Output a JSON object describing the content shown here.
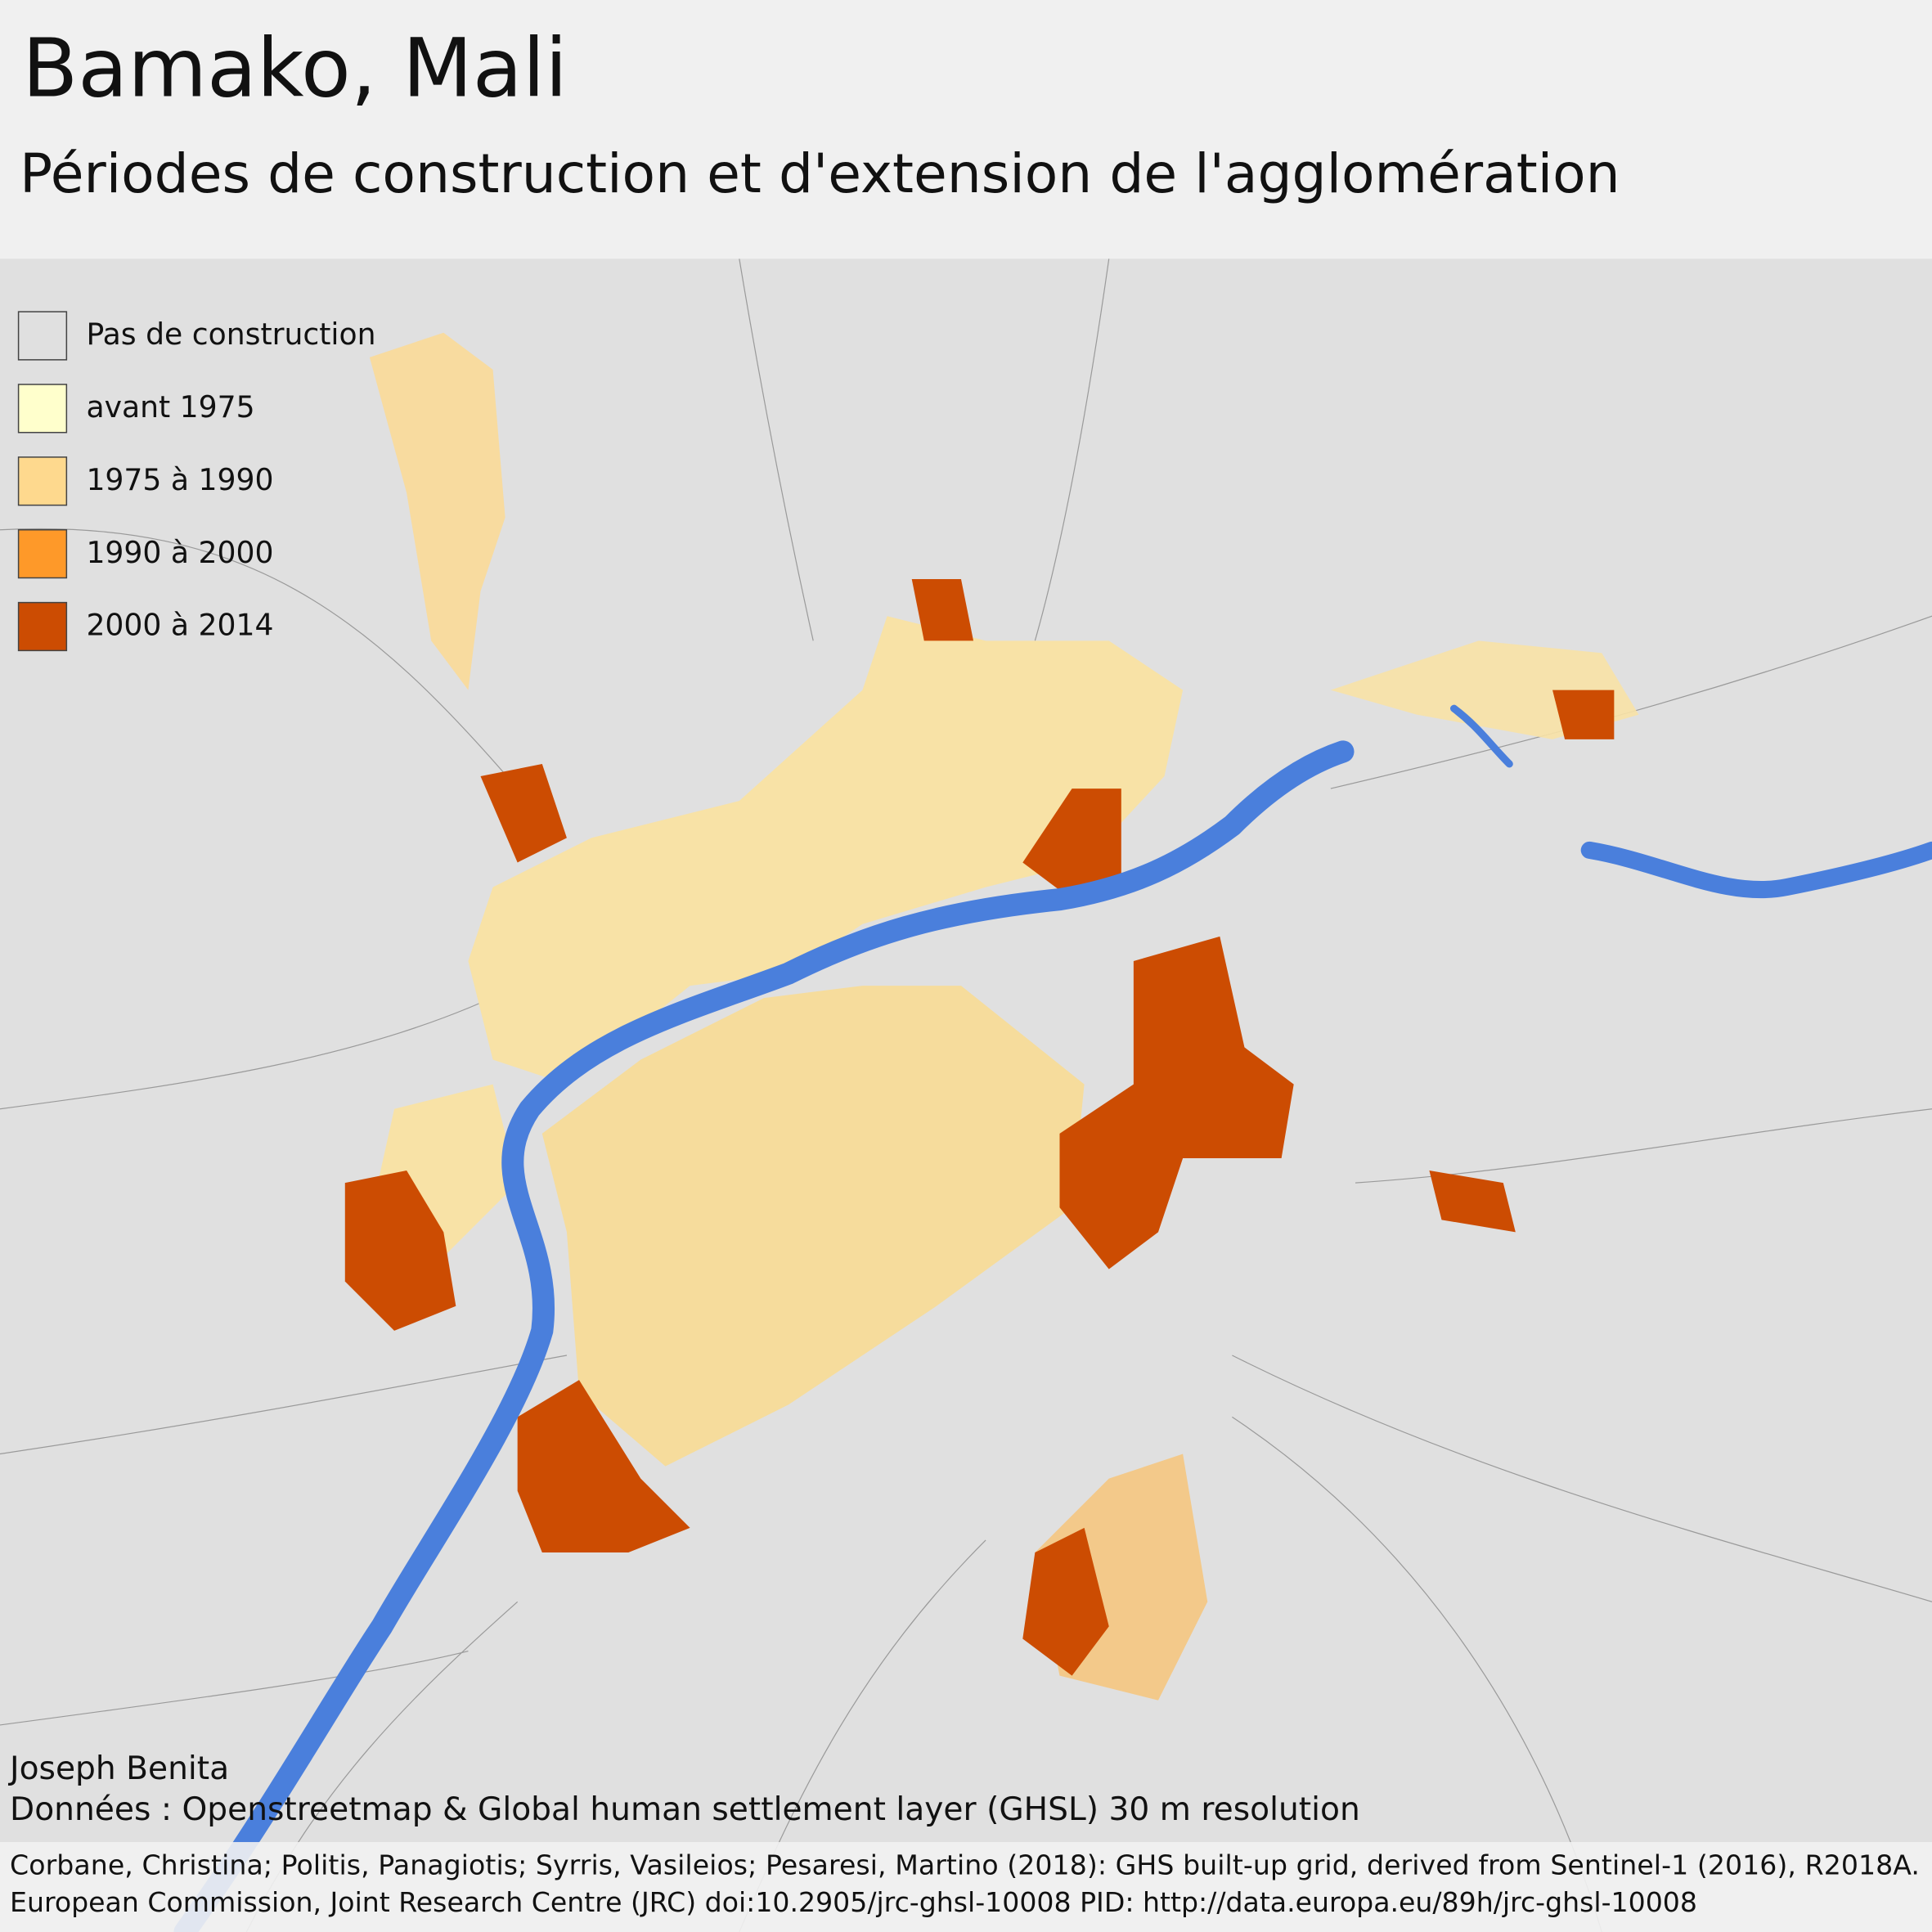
{
  "header": {
    "title": "Bamako, Mali",
    "subtitle": "Périodes de construction et d'extension de l'agglomération"
  },
  "legend": {
    "items": [
      {
        "label": "Pas de construction",
        "color": "#e0e0e0"
      },
      {
        "label": "avant 1975",
        "color": "#ffffcc"
      },
      {
        "label": "1975 à 1990",
        "color": "#fed98e"
      },
      {
        "label": "1990 à 2000",
        "color": "#fe9929"
      },
      {
        "label": "2000 à 2014",
        "color": "#cc4c02"
      }
    ]
  },
  "credits": {
    "author": "Joseph Benita",
    "data_source": "Données : Openstreetmap & Global human settlement layer (GHSL) 30 m resolution",
    "citation": [
      "Corbane, Christina; Politis, Panagiotis; Syrris, Vasileios; Pesaresi, Martino (2018): GHS built-up grid, derived from Sentinel-1 (2016), R2018A.",
      "European Commission, Joint Research Centre (JRC) doi:10.2905/jrc-ghsl-10008 PID: http://data.europa.eu/89h/jrc-ghsl-10008"
    ]
  }
}
